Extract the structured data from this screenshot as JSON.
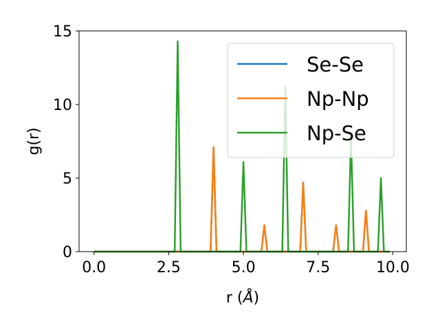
{
  "chart_data": {
    "type": "line",
    "xlabel": "r (",
    "xlabel_unit": "Å",
    "xlabel_close": ")",
    "ylabel": "g(r)",
    "xlim": [
      -0.5,
      10.45
    ],
    "ylim": [
      0,
      15
    ],
    "xticks": [
      0.0,
      2.5,
      5.0,
      7.5,
      10.0
    ],
    "xtick_labels": [
      "0.0",
      "2.5",
      "5.0",
      "7.5",
      "10.0"
    ],
    "yticks": [
      0,
      5,
      10,
      15
    ],
    "ytick_labels": [
      "0",
      "5",
      "10",
      "15"
    ],
    "grid": false,
    "legend_position": "top-right",
    "x_range": [
      0.0,
      9.9
    ],
    "series": [
      {
        "name": "Se-Se",
        "color": "#1f77b4",
        "peaks": [
          [
            4.0,
            7.1
          ],
          [
            5.7,
            1.8
          ],
          [
            7.0,
            4.7
          ],
          [
            8.1,
            1.8
          ],
          [
            9.1,
            2.8
          ]
        ]
      },
      {
        "name": "Np-Np",
        "color": "#ff7f0e",
        "peaks": [
          [
            4.0,
            7.1
          ],
          [
            5.7,
            1.8
          ],
          [
            7.0,
            4.7
          ],
          [
            8.1,
            1.8
          ],
          [
            9.1,
            2.8
          ]
        ]
      },
      {
        "name": "Np-Se",
        "color": "#2ca02c",
        "peaks": [
          [
            2.8,
            14.3
          ],
          [
            5.0,
            6.1
          ],
          [
            6.4,
            11.2
          ],
          [
            8.6,
            7.8
          ],
          [
            9.6,
            5.0
          ]
        ]
      }
    ]
  }
}
